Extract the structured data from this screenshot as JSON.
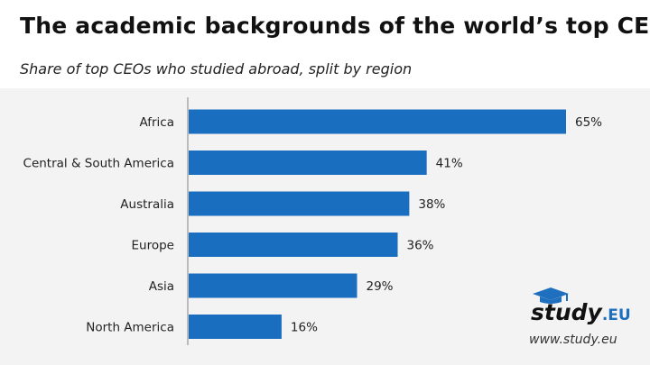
{
  "header": {
    "title": "The academic backgrounds of the world’s top CEOs",
    "subtitle": "Share of top CEOs who studied abroad, split by region"
  },
  "brand": {
    "logo_main": "study",
    "logo_suffix": ".EU",
    "website": "www.study.eu"
  },
  "colors": {
    "bar": "#1a6ebf",
    "axis": "#bbbbbb",
    "plot_bg": "#f3f3f3"
  },
  "chart_data": {
    "type": "bar",
    "orientation": "horizontal",
    "categories": [
      "Africa",
      "Central & South America",
      "Australia",
      "Europe",
      "Asia",
      "North America"
    ],
    "values": [
      65,
      41,
      38,
      36,
      29,
      16
    ],
    "value_labels": [
      "65%",
      "41%",
      "38%",
      "36%",
      "29%",
      "16%"
    ],
    "title": "The academic backgrounds of the world’s top CEOs",
    "subtitle": "Share of top CEOs who studied abroad, split by region",
    "xlabel": "",
    "ylabel": "",
    "xlim": [
      0,
      65
    ],
    "grid": false,
    "legend": "none"
  }
}
